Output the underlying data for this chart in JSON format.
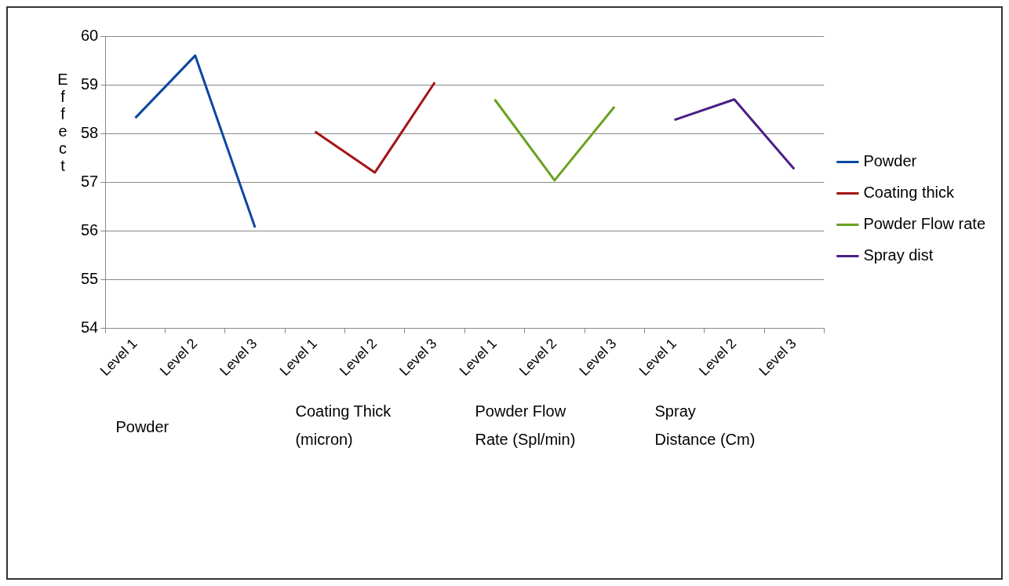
{
  "chart_data": {
    "type": "line",
    "ylabel": "Effect",
    "categories": [
      "Level 1",
      "Level 2",
      "Level 3",
      "Level 1",
      "Level 2",
      "Level 3",
      "Level 1",
      "Level 2",
      "Level 3",
      "Level 1",
      "Level 2",
      "Level 3"
    ],
    "series": [
      {
        "name": "Powder",
        "color": "#0d47a1",
        "values": [
          58.32,
          59.6,
          56.07,
          null,
          null,
          null,
          null,
          null,
          null,
          null,
          null,
          null
        ]
      },
      {
        "name": "Coating thick",
        "color": "#a31515",
        "values": [
          null,
          null,
          null,
          58.04,
          57.2,
          59.05,
          null,
          null,
          null,
          null,
          null,
          null
        ]
      },
      {
        "name": "Powder Flow rate",
        "color": "#6aa121",
        "values": [
          null,
          null,
          null,
          null,
          null,
          null,
          58.7,
          57.04,
          58.55,
          null,
          null,
          null
        ]
      },
      {
        "name": "Spray dist",
        "color": "#4b1f86",
        "values": [
          null,
          null,
          null,
          null,
          null,
          null,
          null,
          null,
          null,
          58.28,
          58.7,
          57.27
        ]
      }
    ],
    "ylim": [
      54,
      60
    ],
    "yticks": [
      54,
      55,
      56,
      57,
      58,
      59,
      60
    ],
    "grid": "y",
    "legend": "right",
    "marker": "none",
    "line_style": "solid",
    "annotations": [
      "Powder",
      "Coating Thick (micron)",
      "Powder Flow Rate (Spl/min)",
      "Spray Distance (Cm)"
    ]
  }
}
